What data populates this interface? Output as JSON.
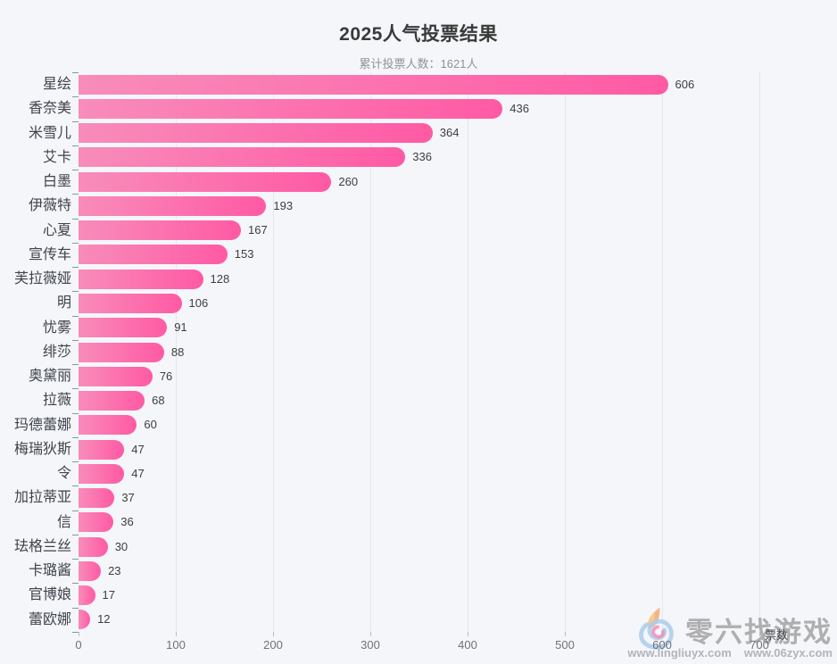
{
  "title": "2025人气投票结果",
  "subtitle": "累计投票人数：1621人",
  "chart_data": {
    "type": "bar",
    "orientation": "horizontal",
    "title": "2025人气投票结果",
    "subtitle": "累计投票人数：1621人",
    "categories": [
      "星绘",
      "香奈美",
      "米雪儿",
      "艾卡",
      "白墨",
      "伊薇特",
      "心夏",
      "宣传车",
      "芙拉薇娅",
      "明",
      "忧雾",
      "绯莎",
      "奥黛丽",
      "拉薇",
      "玛德蕾娜",
      "梅瑞狄斯",
      "令",
      "加拉蒂亚",
      "信",
      "珐格兰丝",
      "卡璐酱",
      "官博娘",
      "蕾欧娜"
    ],
    "values": [
      606,
      436,
      364,
      336,
      260,
      193,
      167,
      153,
      128,
      106,
      91,
      88,
      76,
      68,
      60,
      47,
      47,
      37,
      36,
      30,
      23,
      17,
      12
    ],
    "xlabel": "票数",
    "ylabel": "",
    "xlim": [
      0,
      700
    ],
    "x_ticks": [
      0,
      100,
      200,
      300,
      400,
      500,
      600,
      700
    ],
    "grid": true,
    "legend": false,
    "bar_color_start": "#f88cba",
    "bar_color_end": "#ff5aa4",
    "value_labels": true
  },
  "watermark": {
    "brand": "零六找游戏",
    "url_1": "www.lingliuyx.com",
    "url_2": "www.06zyx.com",
    "logo_icon": "swirl-logo"
  }
}
